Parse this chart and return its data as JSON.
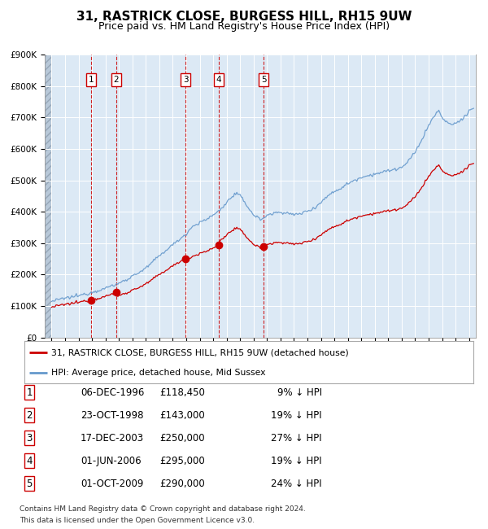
{
  "title": "31, RASTRICK CLOSE, BURGESS HILL, RH15 9UW",
  "subtitle": "Price paid vs. HM Land Registry's House Price Index (HPI)",
  "bg_color": "#dce9f5",
  "red_line_color": "#cc0000",
  "blue_line_color": "#6699cc",
  "red_dot_color": "#cc0000",
  "legend_red_label": "31, RASTRICK CLOSE, BURGESS HILL, RH15 9UW (detached house)",
  "legend_blue_label": "HPI: Average price, detached house, Mid Sussex",
  "transactions": [
    {
      "label": "1",
      "date": "06-DEC-1996",
      "price": 118450,
      "pct": "9% ↓ HPI",
      "x_year": 1996.92
    },
    {
      "label": "2",
      "date": "23-OCT-1998",
      "price": 143000,
      "pct": "19% ↓ HPI",
      "x_year": 1998.8
    },
    {
      "label": "3",
      "date": "17-DEC-2003",
      "price": 250000,
      "pct": "27% ↓ HPI",
      "x_year": 2003.95
    },
    {
      "label": "4",
      "date": "01-JUN-2006",
      "price": 295000,
      "pct": "19% ↓ HPI",
      "x_year": 2006.41
    },
    {
      "label": "5",
      "date": "01-OCT-2009",
      "price": 290000,
      "pct": "24% ↓ HPI",
      "x_year": 2009.75
    }
  ],
  "ylim": [
    0,
    900000
  ],
  "ytick_vals": [
    0,
    100000,
    200000,
    300000,
    400000,
    500000,
    600000,
    700000,
    800000,
    900000
  ],
  "ytick_labels": [
    "£0",
    "£100K",
    "£200K",
    "£300K",
    "£400K",
    "£500K",
    "£600K",
    "£700K",
    "£800K",
    "£900K"
  ],
  "xlim_start": 1993.5,
  "xlim_end": 2025.5,
  "footnote_line1": "Contains HM Land Registry data © Crown copyright and database right 2024.",
  "footnote_line2": "This data is licensed under the Open Government Licence v3.0.",
  "title_fontsize": 11,
  "subtitle_fontsize": 9,
  "tick_fontsize": 7.5,
  "table_rows": [
    [
      "1",
      "06-DEC-1996",
      "£118,450",
      "9% ↓ HPI"
    ],
    [
      "2",
      "23-OCT-1998",
      "£143,000",
      "19% ↓ HPI"
    ],
    [
      "3",
      "17-DEC-2003",
      "£250,000",
      "27% ↓ HPI"
    ],
    [
      "4",
      "01-JUN-2006",
      "£295,000",
      "19% ↓ HPI"
    ],
    [
      "5",
      "01-OCT-2009",
      "£290,000",
      "24% ↓ HPI"
    ]
  ]
}
